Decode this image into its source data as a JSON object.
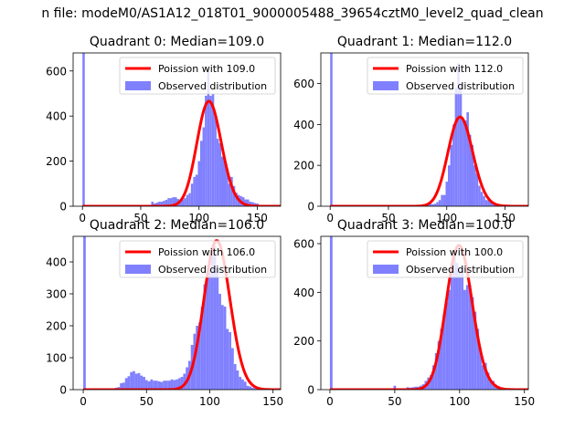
{
  "suptitle": "n file: modeM0/AS1A12_018T01_9000005488_39654cztM0_level2_quad_clean",
  "colors": {
    "hist": "#8080ff",
    "poisson": "#ff0000"
  },
  "legend": {
    "observed_label": "Observed distribution"
  },
  "chart_data": [
    {
      "type": "bar",
      "title": "Quadrant 0: Median=109.0",
      "median": 109,
      "xlim": [
        -8,
        170
      ],
      "ylim": [
        0,
        680
      ],
      "xticks": [
        0,
        50,
        100,
        150
      ],
      "yticks": [
        0,
        200,
        400,
        600
      ],
      "grid": false,
      "legend_position": "top-right",
      "series": [
        {
          "name": "Poission with 109.0",
          "kind": "line"
        },
        {
          "name": "Observed distribution",
          "kind": "histogram",
          "points": [
            [
              1,
              680
            ],
            [
              24,
              2
            ],
            [
              26,
              2
            ],
            [
              28,
              2
            ],
            [
              30,
              2
            ],
            [
              32,
              2
            ],
            [
              34,
              2
            ],
            [
              36,
              2
            ],
            [
              38,
              2
            ],
            [
              40,
              2
            ],
            [
              42,
              2
            ],
            [
              44,
              2
            ],
            [
              46,
              2
            ],
            [
              48,
              2
            ],
            [
              50,
              2
            ],
            [
              52,
              4
            ],
            [
              54,
              4
            ],
            [
              56,
              4
            ],
            [
              58,
              4
            ],
            [
              60,
              20
            ],
            [
              62,
              12
            ],
            [
              64,
              16
            ],
            [
              66,
              20
            ],
            [
              68,
              20
            ],
            [
              70,
              24
            ],
            [
              72,
              28
            ],
            [
              74,
              36
            ],
            [
              76,
              36
            ],
            [
              78,
              40
            ],
            [
              80,
              40
            ],
            [
              82,
              32
            ],
            [
              84,
              20
            ],
            [
              86,
              30
            ],
            [
              88,
              36
            ],
            [
              90,
              50
            ],
            [
              92,
              58
            ],
            [
              94,
              100
            ],
            [
              96,
              130
            ],
            [
              98,
              140
            ],
            [
              100,
              200
            ],
            [
              102,
              290
            ],
            [
              104,
              350
            ],
            [
              106,
              490
            ],
            [
              108,
              610
            ],
            [
              110,
              490
            ],
            [
              112,
              500
            ],
            [
              114,
              410
            ],
            [
              116,
              300
            ],
            [
              118,
              280
            ],
            [
              120,
              220
            ],
            [
              122,
              200
            ],
            [
              124,
              170
            ],
            [
              126,
              100
            ],
            [
              128,
              130
            ],
            [
              130,
              90
            ],
            [
              132,
              60
            ],
            [
              134,
              50
            ],
            [
              136,
              45
            ],
            [
              138,
              40
            ],
            [
              140,
              30
            ],
            [
              142,
              30
            ],
            [
              144,
              20
            ],
            [
              146,
              18
            ],
            [
              148,
              14
            ],
            [
              150,
              12
            ],
            [
              152,
              5
            ],
            [
              154,
              3
            ],
            [
              156,
              2
            ],
            [
              158,
              2
            ],
            [
              160,
              2
            ]
          ]
        }
      ]
    },
    {
      "type": "bar",
      "title": "Quadrant 1: Median=112.0",
      "median": 112,
      "xlim": [
        -8,
        170
      ],
      "ylim": [
        0,
        750
      ],
      "xticks": [
        0,
        50,
        100,
        150
      ],
      "yticks": [
        0,
        200,
        400,
        600
      ],
      "grid": false,
      "legend_position": "top-right",
      "series": [
        {
          "name": "Poission with 112.0",
          "kind": "line"
        },
        {
          "name": "Observed distribution",
          "kind": "histogram",
          "points": [
            [
              1,
              750
            ],
            [
              50,
              2
            ],
            [
              52,
              2
            ],
            [
              54,
              2
            ],
            [
              56,
              2
            ],
            [
              58,
              2
            ],
            [
              60,
              2
            ],
            [
              62,
              2
            ],
            [
              64,
              2
            ],
            [
              66,
              2
            ],
            [
              68,
              2
            ],
            [
              70,
              2
            ],
            [
              72,
              2
            ],
            [
              74,
              2
            ],
            [
              76,
              2
            ],
            [
              78,
              2
            ],
            [
              80,
              4
            ],
            [
              82,
              6
            ],
            [
              84,
              8
            ],
            [
              86,
              12
            ],
            [
              88,
              10
            ],
            [
              90,
              12
            ],
            [
              92,
              20
            ],
            [
              94,
              30
            ],
            [
              96,
              55
            ],
            [
              98,
              55
            ],
            [
              100,
              120
            ],
            [
              102,
              200
            ],
            [
              104,
              300
            ],
            [
              106,
              400
            ],
            [
              108,
              580
            ],
            [
              110,
              700
            ],
            [
              112,
              600
            ],
            [
              114,
              420
            ],
            [
              116,
              420
            ],
            [
              118,
              460
            ],
            [
              120,
              350
            ],
            [
              122,
              300
            ],
            [
              124,
              200
            ],
            [
              126,
              160
            ],
            [
              128,
              100
            ],
            [
              130,
              70
            ],
            [
              132,
              50
            ],
            [
              134,
              30
            ],
            [
              136,
              30
            ],
            [
              138,
              20
            ],
            [
              140,
              15
            ],
            [
              142,
              12
            ],
            [
              144,
              8
            ],
            [
              146,
              4
            ],
            [
              148,
              2
            ],
            [
              150,
              2
            ]
          ]
        }
      ]
    },
    {
      "type": "bar",
      "title": "Quadrant 2: Median=106.0",
      "median": 106,
      "xlim": [
        -8,
        156
      ],
      "ylim": [
        0,
        480
      ],
      "xticks": [
        0,
        50,
        100,
        150
      ],
      "yticks": [
        0,
        100,
        200,
        300,
        400
      ],
      "grid": false,
      "legend_position": "top-right",
      "series": [
        {
          "name": "Poission with 106.0",
          "kind": "line"
        },
        {
          "name": "Observed distribution",
          "kind": "histogram",
          "points": [
            [
              1,
              480
            ],
            [
              12,
              1
            ],
            [
              14,
              1
            ],
            [
              16,
              1
            ],
            [
              18,
              1
            ],
            [
              20,
              1
            ],
            [
              22,
              2
            ],
            [
              24,
              3
            ],
            [
              26,
              6
            ],
            [
              28,
              8
            ],
            [
              30,
              20
            ],
            [
              32,
              22
            ],
            [
              34,
              36
            ],
            [
              36,
              42
            ],
            [
              38,
              55
            ],
            [
              40,
              58
            ],
            [
              42,
              50
            ],
            [
              44,
              52
            ],
            [
              46,
              44
            ],
            [
              48,
              40
            ],
            [
              50,
              30
            ],
            [
              52,
              26
            ],
            [
              54,
              32
            ],
            [
              56,
              28
            ],
            [
              58,
              28
            ],
            [
              60,
              26
            ],
            [
              62,
              24
            ],
            [
              64,
              28
            ],
            [
              66,
              28
            ],
            [
              68,
              28
            ],
            [
              70,
              32
            ],
            [
              72,
              30
            ],
            [
              74,
              32
            ],
            [
              76,
              36
            ],
            [
              78,
              40
            ],
            [
              80,
              50
            ],
            [
              82,
              70
            ],
            [
              84,
              90
            ],
            [
              86,
              140
            ],
            [
              88,
              175
            ],
            [
              90,
              200
            ],
            [
              92,
              210
            ],
            [
              94,
              260
            ],
            [
              96,
              330
            ],
            [
              98,
              360
            ],
            [
              100,
              380
            ],
            [
              102,
              430
            ],
            [
              104,
              450
            ],
            [
              106,
              380
            ],
            [
              108,
              300
            ],
            [
              110,
              265
            ],
            [
              112,
              260
            ],
            [
              114,
              190
            ],
            [
              116,
              180
            ],
            [
              118,
              130
            ],
            [
              120,
              80
            ],
            [
              122,
              60
            ],
            [
              124,
              40
            ],
            [
              126,
              32
            ],
            [
              128,
              25
            ],
            [
              130,
              12
            ],
            [
              132,
              10
            ],
            [
              134,
              6
            ],
            [
              136,
              4
            ],
            [
              138,
              4
            ],
            [
              140,
              2
            ],
            [
              142,
              2
            ],
            [
              144,
              2
            ],
            [
              146,
              2
            ]
          ]
        }
      ]
    },
    {
      "type": "bar",
      "title": "Quadrant 3: Median=100.0",
      "median": 100,
      "xlim": [
        -7,
        153
      ],
      "ylim": [
        0,
        630
      ],
      "xticks": [
        0,
        50,
        100,
        150
      ],
      "yticks": [
        0,
        200,
        400,
        600
      ],
      "grid": false,
      "legend_position": "top-right",
      "series": [
        {
          "name": "Poission with 100.0",
          "kind": "line"
        },
        {
          "name": "Observed distribution",
          "kind": "histogram",
          "points": [
            [
              1,
              630
            ],
            [
              40,
              2
            ],
            [
              42,
              2
            ],
            [
              44,
              2
            ],
            [
              46,
              4
            ],
            [
              48,
              4
            ],
            [
              50,
              16
            ],
            [
              52,
              4
            ],
            [
              54,
              4
            ],
            [
              56,
              4
            ],
            [
              58,
              4
            ],
            [
              60,
              10
            ],
            [
              62,
              8
            ],
            [
              64,
              10
            ],
            [
              66,
              12
            ],
            [
              68,
              12
            ],
            [
              70,
              16
            ],
            [
              72,
              22
            ],
            [
              74,
              36
            ],
            [
              76,
              50
            ],
            [
              78,
              60
            ],
            [
              80,
              100
            ],
            [
              82,
              150
            ],
            [
              84,
              200
            ],
            [
              86,
              250
            ],
            [
              88,
              310
            ],
            [
              90,
              360
            ],
            [
              92,
              410
            ],
            [
              94,
              490
            ],
            [
              96,
              560
            ],
            [
              98,
              520
            ],
            [
              100,
              500
            ],
            [
              102,
              500
            ],
            [
              104,
              410
            ],
            [
              106,
              430
            ],
            [
              108,
              430
            ],
            [
              110,
              380
            ],
            [
              112,
              320
            ],
            [
              114,
              250
            ],
            [
              116,
              170
            ],
            [
              118,
              100
            ],
            [
              120,
              110
            ],
            [
              122,
              70
            ],
            [
              124,
              40
            ],
            [
              126,
              36
            ],
            [
              128,
              20
            ],
            [
              130,
              14
            ],
            [
              132,
              8
            ],
            [
              134,
              6
            ],
            [
              136,
              4
            ],
            [
              138,
              2
            ],
            [
              140,
              2
            ]
          ]
        }
      ]
    }
  ]
}
